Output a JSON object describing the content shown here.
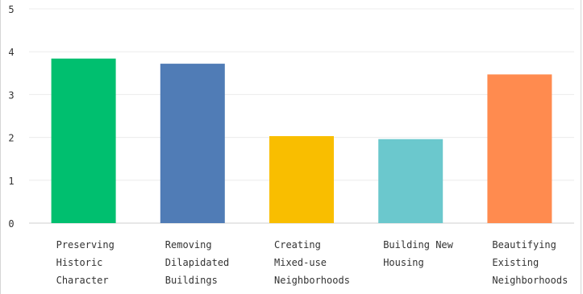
{
  "chart_data": {
    "type": "bar",
    "categories": [
      [
        "Preserving",
        "Historic",
        "Character"
      ],
      [
        "Removing",
        "Dilapidated",
        "Buildings"
      ],
      [
        "Creating",
        "Mixed-use",
        "Neighborhoods"
      ],
      [
        "Building New",
        "Housing"
      ],
      [
        "Beautifying",
        "Existing",
        "Neighborhoods"
      ]
    ],
    "values": [
      3.84,
      3.72,
      2.03,
      1.96,
      3.47
    ],
    "colors": [
      "#00bf6f",
      "#507cb6",
      "#f9be00",
      "#6bc8cd",
      "#ff8b4f"
    ],
    "yticks": [
      "0",
      "1",
      "2",
      "3",
      "4",
      "5"
    ],
    "ylim": [
      0,
      5
    ],
    "grid": true,
    "title": "",
    "xlabel": "",
    "ylabel": ""
  }
}
